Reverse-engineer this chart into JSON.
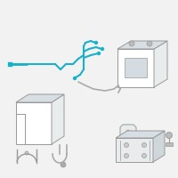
{
  "bg_color": "#f2f2f2",
  "wire_color": "#1ab0c8",
  "edge_color": "#999999",
  "cable_color": "#aaaaaa",
  "white_fill": "#ffffff",
  "light_fill": "#e8eced",
  "mid_fill": "#d8dfe4"
}
